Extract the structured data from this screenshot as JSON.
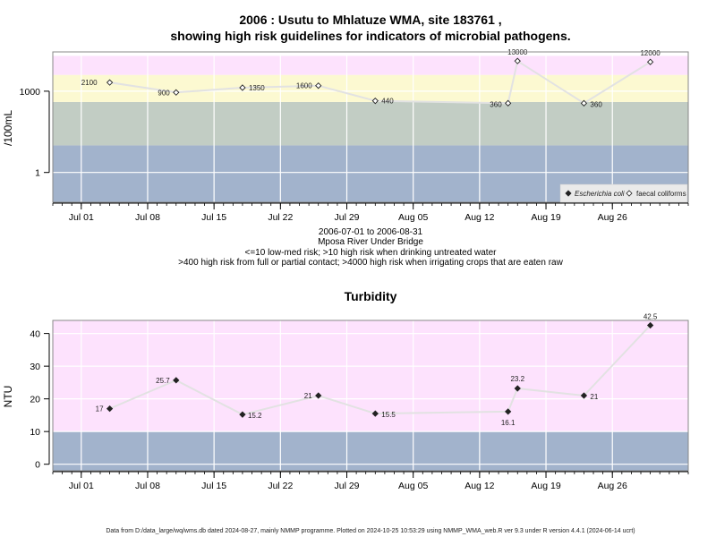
{
  "chart_data": [
    {
      "type": "scatter",
      "title": "2006 : Usutu to Mhlatuze WMA, site 183761 ,",
      "title_line2": "showing high risk guidelines for indicators of microbial pathogens.",
      "ylabel": "/100mL",
      "yscale": "log",
      "y_ticks": [
        1,
        1000
      ],
      "x_ticks": [
        "Jul 01",
        "Jul 08",
        "Jul 15",
        "Jul 22",
        "Jul 29",
        "Aug 05",
        "Aug 12",
        "Aug 19",
        "Aug 26"
      ],
      "x_tick_dates": [
        "2006-07-01",
        "2006-07-08",
        "2006-07-15",
        "2006-07-22",
        "2006-07-29",
        "2006-08-05",
        "2006-08-12",
        "2006-08-19",
        "2006-08-26"
      ],
      "xlim": [
        "2006-06-28",
        "2006-09-03"
      ],
      "risk_bands": [
        {
          "upper": 10,
          "color": "#a2b3cc"
        },
        {
          "upper": 400,
          "color": "#c2cdc4"
        },
        {
          "upper": 4000,
          "color": "#fcf9d1"
        },
        {
          "upper": 20000,
          "color": "#fde2fd"
        }
      ],
      "series": [
        {
          "name": "faecal coliforms",
          "marker": "open-diamond",
          "line_color": "#e2e2e2",
          "points": [
            {
              "date": "2006-07-04",
              "value": 2100,
              "label": "2100"
            },
            {
              "date": "2006-07-11",
              "value": 900,
              "label": "900"
            },
            {
              "date": "2006-07-18",
              "value": 1350,
              "label": "1350"
            },
            {
              "date": "2006-07-26",
              "value": 1600,
              "label": "1600"
            },
            {
              "date": "2006-08-01",
              "value": 440,
              "label": "440"
            },
            {
              "date": "2006-08-15",
              "value": 360,
              "label": "360"
            },
            {
              "date": "2006-08-16",
              "value": 13000,
              "label": "13000"
            },
            {
              "date": "2006-08-23",
              "value": 360,
              "label": "360"
            },
            {
              "date": "2006-08-30",
              "value": 12000,
              "label": "12000"
            }
          ]
        }
      ],
      "legend": {
        "position": "bottom-right",
        "entries": [
          {
            "label": "Escherichia coli",
            "marker": "filled-diamond"
          },
          {
            "label": "faecal coliforms",
            "marker": "open-diamond"
          }
        ]
      },
      "annotation_lines": [
        "2006-07-01 to 2006-08-31",
        "Mposa River Under Bridge",
        "<=10 low-med risk; >10 high risk when drinking untreated water",
        ">400 high risk from full or partial contact; >4000 high risk when irrigating crops that are eaten raw"
      ]
    },
    {
      "type": "scatter",
      "title": "Turbidity",
      "ylabel": "NTU",
      "ylim": [
        -2,
        44
      ],
      "y_ticks": [
        0,
        10,
        20,
        30,
        40
      ],
      "x_ticks": [
        "Jul 01",
        "Jul 08",
        "Jul 15",
        "Jul 22",
        "Jul 29",
        "Aug 05",
        "Aug 12",
        "Aug 19",
        "Aug 26"
      ],
      "x_tick_dates": [
        "2006-07-01",
        "2006-07-08",
        "2006-07-15",
        "2006-07-22",
        "2006-07-29",
        "2006-08-05",
        "2006-08-12",
        "2006-08-19",
        "2006-08-26"
      ],
      "xlim": [
        "2006-06-28",
        "2006-09-03"
      ],
      "risk_bands": [
        {
          "upper": 10,
          "color": "#a2b3cc"
        },
        {
          "upper": 44,
          "color": "#fde2fd"
        }
      ],
      "series": [
        {
          "marker": "filled-diamond",
          "line_color": "#e2e2e2",
          "points": [
            {
              "date": "2006-07-04",
              "value": 17,
              "label": "17"
            },
            {
              "date": "2006-07-11",
              "value": 25.7,
              "label": "25.7"
            },
            {
              "date": "2006-07-18",
              "value": 15.2,
              "label": "15.2"
            },
            {
              "date": "2006-07-26",
              "value": 21,
              "label": "21"
            },
            {
              "date": "2006-08-01",
              "value": 15.5,
              "label": "15.5"
            },
            {
              "date": "2006-08-15",
              "value": 16.1,
              "label": "16.1"
            },
            {
              "date": "2006-08-16",
              "value": 23.2,
              "label": "23.2"
            },
            {
              "date": "2006-08-23",
              "value": 21,
              "label": "21"
            },
            {
              "date": "2006-08-30",
              "value": 42.5,
              "label": "42.5"
            }
          ]
        }
      ]
    }
  ],
  "footer": "Data from D:/data_large/wq/wms.db dated 2024-08-27, mainly NMMP programme. Plotted on 2024-10-25 10:53:29 using NMMP_WMA_web.R ver 9.3 under R version 4.4.1 (2024-06-14 ucrt)"
}
